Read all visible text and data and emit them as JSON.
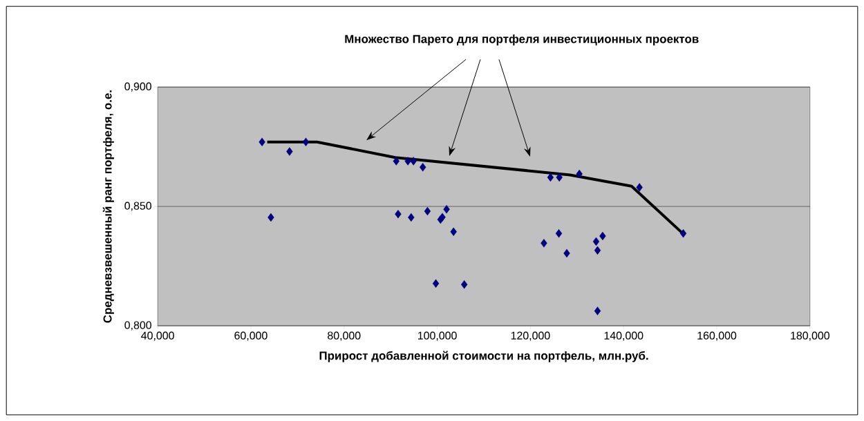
{
  "chart_data": {
    "type": "scatter",
    "title": "Множество Парето для портфеля инвестиционных проектов",
    "xlabel": "Прирост добавленной стоимости на портфель, млн.руб.",
    "ylabel": "Средневзвешенный ранг портфеля, о.е.",
    "xlim": [
      40,
      180
    ],
    "ylim": [
      0.8,
      0.9
    ],
    "xticks": [
      {
        "value": 40,
        "label": "40,000"
      },
      {
        "value": 60,
        "label": "60,000"
      },
      {
        "value": 80,
        "label": "80,000"
      },
      {
        "value": 100,
        "label": "100,000"
      },
      {
        "value": 120,
        "label": "120,000"
      },
      {
        "value": 140,
        "label": "140,000"
      },
      {
        "value": 160,
        "label": "160,000"
      },
      {
        "value": 180,
        "label": "180,000"
      }
    ],
    "yticks": [
      {
        "value": 0.8,
        "label": "0,800"
      },
      {
        "value": 0.85,
        "label": "0,850"
      },
      {
        "value": 0.9,
        "label": "0,900"
      }
    ],
    "grid": "y",
    "series": [
      {
        "color": "#000080",
        "marker": "diamond",
        "x": [
          62.4,
          68.3,
          71.8,
          64.3,
          91.2,
          93.7,
          94.9,
          96.9,
          91.6,
          94.4,
          97.9,
          102.0,
          100.7,
          101.1,
          103.5,
          99.7,
          105.8,
          124.3,
          126.2,
          130.5,
          143.4,
          152.8,
          122.9,
          126.1,
          127.8,
          134.1,
          134.4,
          135.5,
          134.4
        ],
        "values": [
          0.877,
          0.873,
          0.877,
          0.8454,
          0.869,
          0.869,
          0.869,
          0.8664,
          0.8468,
          0.8454,
          0.848,
          0.8488,
          0.8445,
          0.8455,
          0.8394,
          0.8177,
          0.8173,
          0.8622,
          0.8622,
          0.8636,
          0.858,
          0.8387,
          0.8346,
          0.8387,
          0.8304,
          0.8353,
          0.8316,
          0.8376,
          0.8062
        ]
      },
      {
        "type": "line",
        "color": "#000000",
        "marker": "none",
        "line_style": "solid",
        "x": [
          63.5,
          74.2,
          91.0,
          128.5,
          141.7,
          152.8
        ],
        "values": [
          0.877,
          0.877,
          0.8705,
          0.8632,
          0.8585,
          0.8385
        ]
      }
    ]
  }
}
